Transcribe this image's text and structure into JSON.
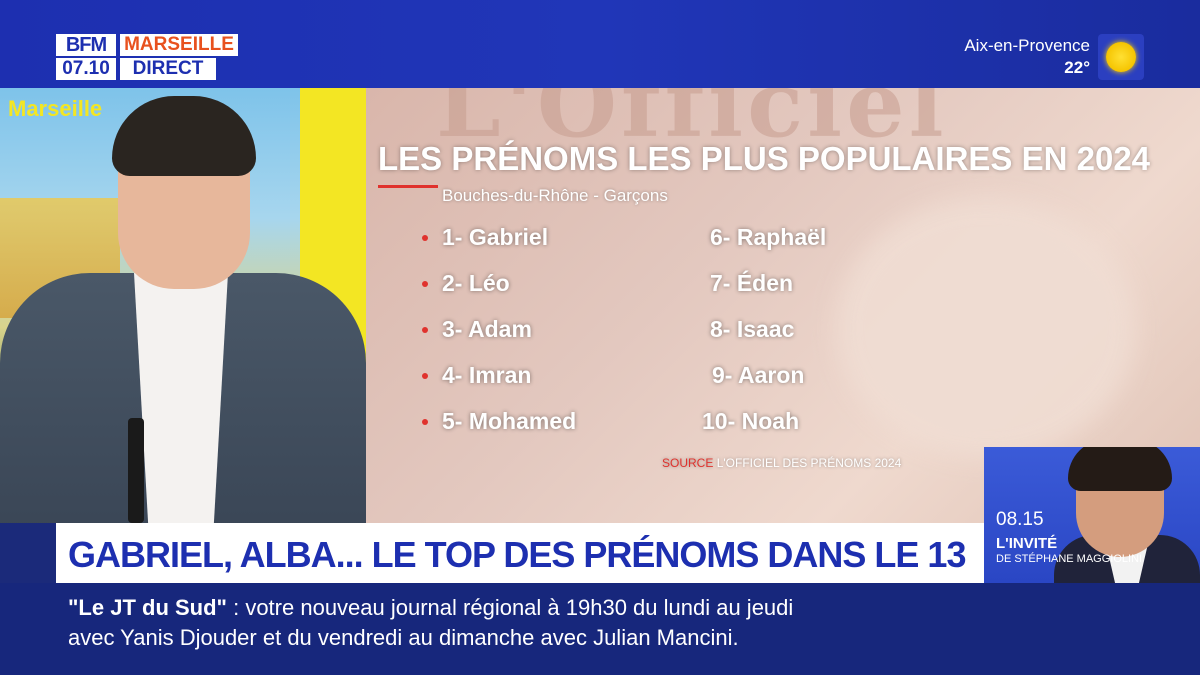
{
  "channel": {
    "brand": "BFM",
    "city": "MARSEILLE",
    "time": "07.10",
    "live": "DIRECT"
  },
  "weather": {
    "city": "Aix-en-Provence",
    "temperature": "22°",
    "icon": "sun-icon"
  },
  "studio": {
    "backdrop_label": "Marseille"
  },
  "graphic": {
    "background_word": "L'Officiel",
    "title": "LES PRÉNOMS LES PLUS POPULAIRES EN 2024",
    "subtitle": "Bouches-du-Rhône - Garçons",
    "names_left": [
      "1- Gabriel",
      "2- Léo",
      "3- Adam",
      "4- Imran",
      "5- Mohamed"
    ],
    "names_right": [
      "6- Raphaël",
      "7- Éden",
      "8- Isaac",
      "9- Aaron",
      "10- Noah"
    ],
    "source_tag": "SOURCE",
    "source_text": "L'OFFICIEL DES PRÉNOMS 2024",
    "accent_color": "#e0322d"
  },
  "inset": {
    "time": "08.15",
    "label": "L'INVITÉ",
    "sub": "DE STÉPHANE MAGGIOLINI"
  },
  "headline": {
    "text": "GABRIEL, ALBA... LE TOP DES PRÉNOMS DANS LE 13"
  },
  "ticker": {
    "show": "\"Le JT du Sud\"",
    "line1_rest": " :  votre nouveau journal régional à 19h30 du lundi au jeudi",
    "line2": "avec Yanis Djouder et du vendredi au dimanche avec Julian Mancini."
  },
  "colors": {
    "brand_blue": "#1d2fb0",
    "brand_orange": "#e8511e",
    "ticker_bg": "#17277c"
  }
}
